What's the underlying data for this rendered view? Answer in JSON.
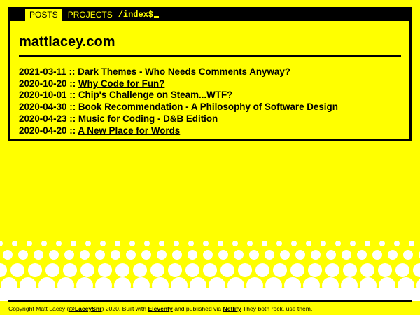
{
  "nav": {
    "items": [
      {
        "label": "POSTS"
      },
      {
        "label": "PROJECTS"
      }
    ],
    "prompt": "/index$"
  },
  "site": {
    "title": "mattlacey.com"
  },
  "posts": [
    {
      "date": "2021-03-11",
      "sep": "::",
      "title": "Dark Themes - Who Needs Comments Anyway?"
    },
    {
      "date": "2020-10-20",
      "sep": "::",
      "title": "Why Code for Fun?"
    },
    {
      "date": "2020-10-01",
      "sep": "::",
      "title": "Chip's Challenge on Steam...WTF?"
    },
    {
      "date": "2020-04-30",
      "sep": "::",
      "title": "Book Recommendation - A Philosophy of Software Design"
    },
    {
      "date": "2020-04-23",
      "sep": "::",
      "title": "Music for Coding - D&B Edition"
    },
    {
      "date": "2020-04-20",
      "sep": "::",
      "title": "A New Place for Words"
    }
  ],
  "footer": {
    "prefix": "Copyright Matt Lacey (",
    "handle": "@LaceySnr",
    "middle": ") 2020. Built with ",
    "eleventy": "Eleventy",
    "and": " and published via ",
    "netlify": "Netlify",
    "suffix": " They both rock, use them."
  },
  "colors": {
    "background": "#ffff00",
    "ink": "#000000",
    "dots": "#ffffff"
  }
}
